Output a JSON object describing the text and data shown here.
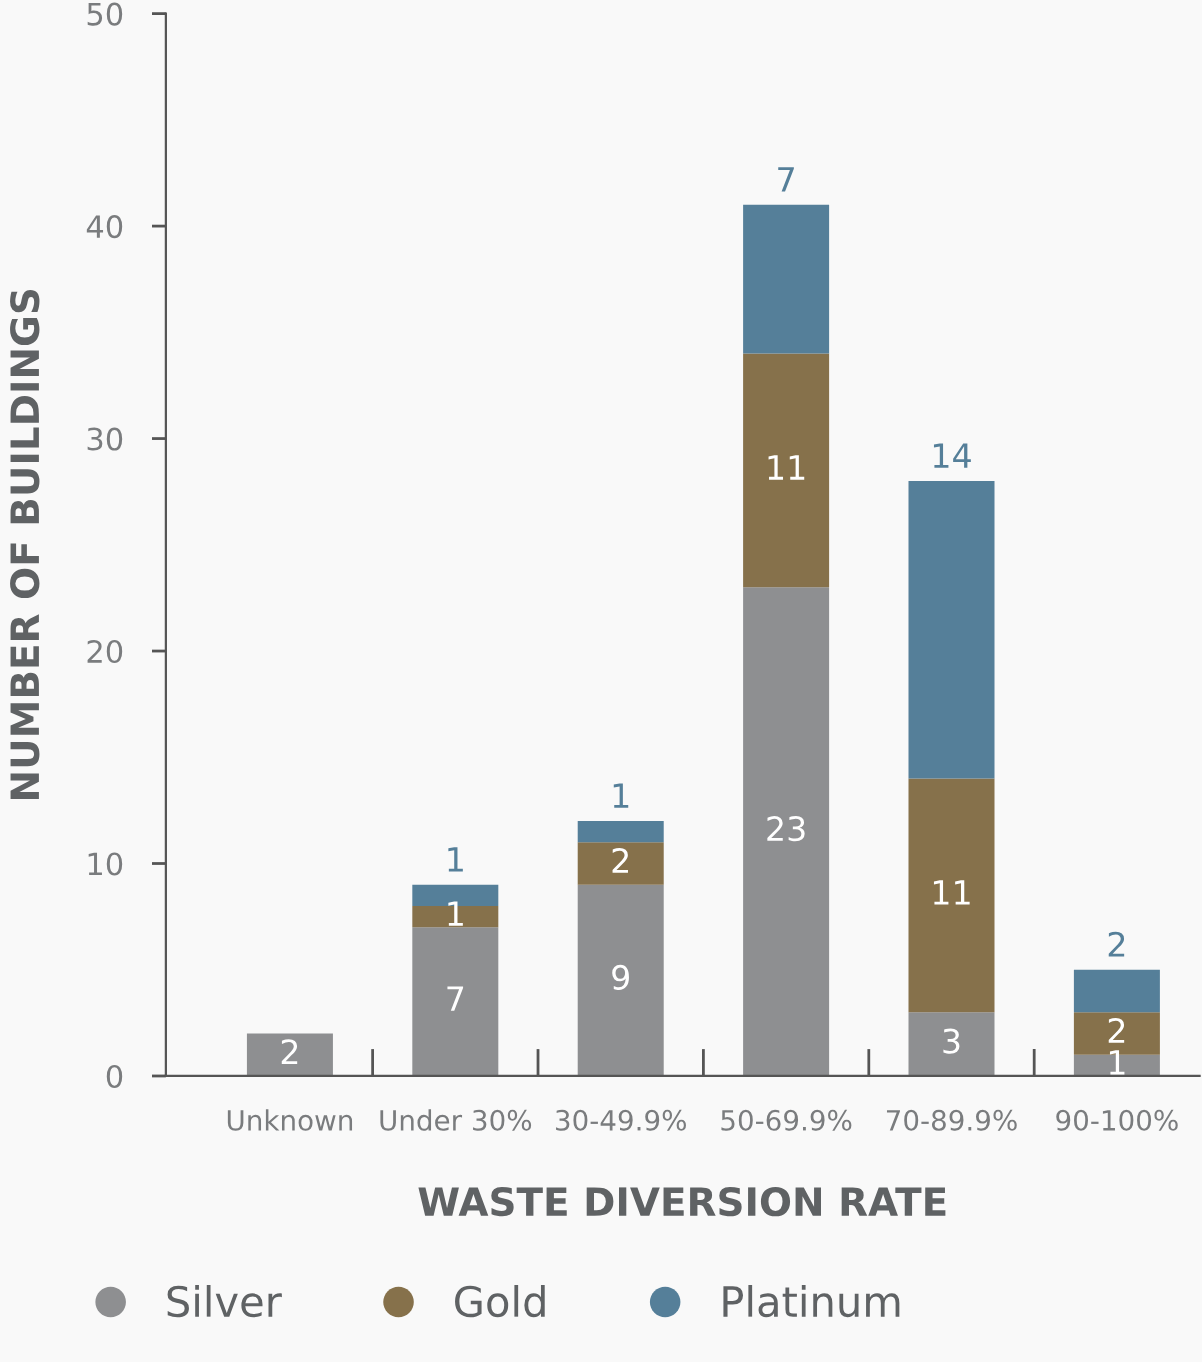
{
  "chart_data": {
    "type": "bar",
    "stacked": true,
    "xlabel": "WASTE DIVERSION RATE",
    "ylabel": "NUMBER OF BUILDINGS",
    "categories": [
      "Unknown",
      "Under 30%",
      "30-49.9%",
      "50-69.9%",
      "70-89.9%",
      "90-100%"
    ],
    "series": [
      {
        "name": "Silver",
        "color": "#8e8f91",
        "values": [
          2,
          7,
          9,
          23,
          3,
          1
        ]
      },
      {
        "name": "Gold",
        "color": "#86714b",
        "values": [
          null,
          1,
          2,
          11,
          11,
          2
        ]
      },
      {
        "name": "Platinum",
        "color": "#557f99",
        "values": [
          null,
          1,
          1,
          7,
          14,
          2
        ]
      }
    ],
    "ylim": [
      0,
      50
    ],
    "yticks": [
      0,
      10,
      20,
      30,
      40,
      50
    ],
    "grid": false,
    "legend": "bottom",
    "data_labels": true
  }
}
